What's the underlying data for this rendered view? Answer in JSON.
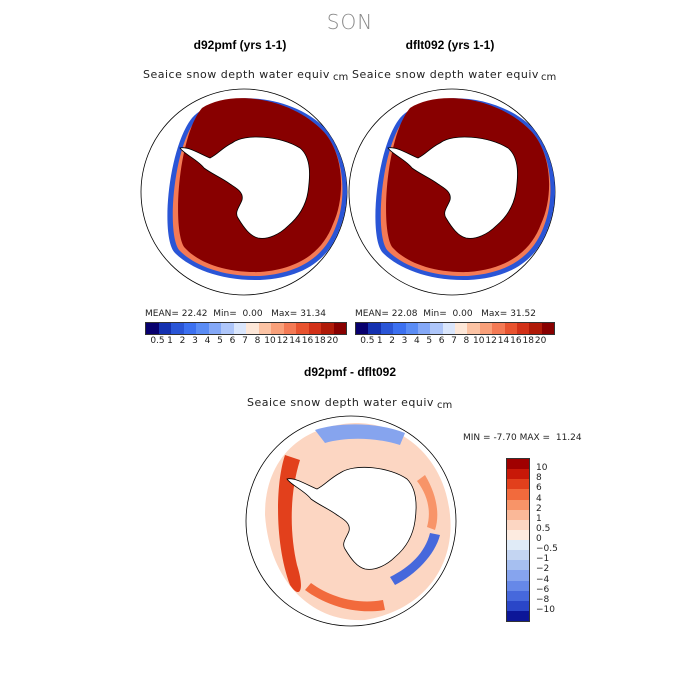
{
  "season": "SON",
  "panels": [
    {
      "title": "d92pmf (yrs 1-1)",
      "variable": "Seaice snow depth water equiv",
      "units": "cm",
      "stats": {
        "mean_label": "MEAN=",
        "mean": "22.42",
        "min_label": "Min=",
        "min": "0.00",
        "max_label": "Max=",
        "max": "31.34"
      }
    },
    {
      "title": "dflt092 (yrs 1-1)",
      "variable": "Seaice snow depth water equiv",
      "units": "cm",
      "stats": {
        "mean_label": "MEAN=",
        "mean": "22.08",
        "min_label": "Min=",
        "min": "0.00",
        "max_label": "Max=",
        "max": "31.52"
      }
    }
  ],
  "abs_colorbar": {
    "labels": [
      "0.5",
      "1",
      "2",
      "3",
      "4",
      "5",
      "6",
      "7",
      "8",
      "10",
      "12",
      "14",
      "16",
      "18",
      "20"
    ],
    "colors": [
      "#08006e",
      "#1431b0",
      "#2a55d6",
      "#3c70f0",
      "#5a8cf5",
      "#84a8f7",
      "#aec6fa",
      "#dae6fc",
      "#fde7d8",
      "#fcc3a4",
      "#f9a07a",
      "#f47a55",
      "#e8532f",
      "#d23118",
      "#b01a08",
      "#880000"
    ]
  },
  "diff_panel": {
    "title": "d92pmf - dflt092",
    "variable": "Seaice snow depth water equiv",
    "units": "cm",
    "minmax": {
      "min_label": "MIN =",
      "min": "-7.70",
      "max_label": "MAX =",
      "max": "11.24"
    }
  },
  "diff_colorbar": {
    "labels": [
      "10",
      "8",
      "6",
      "4",
      "2",
      "1",
      "0.5",
      "0",
      "−0.5",
      "−1",
      "−2",
      "−4",
      "−6",
      "−8",
      "−10"
    ],
    "colors": [
      "#a00000",
      "#c81808",
      "#e2401c",
      "#f26a3c",
      "#f89468",
      "#fab898",
      "#fcd6c2",
      "#fdebe0",
      "#e0ebf7",
      "#c4d5f2",
      "#a6bff0",
      "#86a4ee",
      "#6688e8",
      "#4668dc",
      "#2a46c8",
      "#0c1698"
    ]
  }
}
